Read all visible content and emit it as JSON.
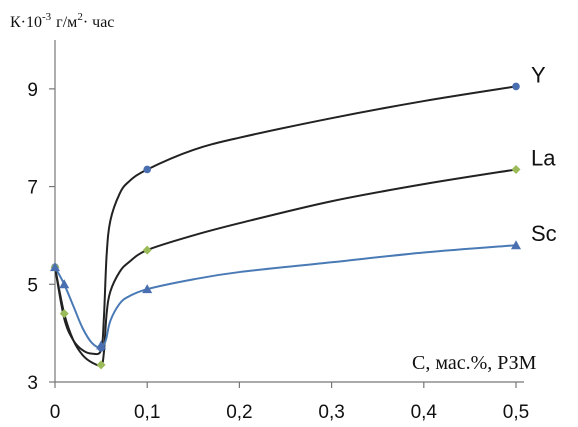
{
  "chart_data": {
    "type": "line",
    "ylabel_main": "К·10",
    "ylabel_exp": "-3",
    "ylabel_unit_a": "г/м",
    "ylabel_unit_exp": "2",
    "ylabel_unit_b": "· час",
    "xlabel": "С, мас.%, РЗМ",
    "x_ticks": [
      "0",
      "0,1",
      "0,2",
      "0,3",
      "0,4",
      "0,5"
    ],
    "x_tick_values": [
      0,
      0.1,
      0.2,
      0.3,
      0.4,
      0.5
    ],
    "y_ticks": [
      "3",
      "5",
      "7",
      "9"
    ],
    "y_tick_values": [
      3,
      5,
      7,
      9
    ],
    "xlim": [
      0,
      0.5
    ],
    "ylim": [
      3,
      10
    ],
    "grid": false,
    "series": [
      {
        "name": "Y",
        "color": "#222222",
        "marker_color": "#4a6fb0",
        "marker": "circle",
        "points": [
          [
            0,
            5.35
          ],
          [
            0.05,
            3.7
          ],
          [
            0.1,
            7.35
          ],
          [
            0.5,
            9.05
          ]
        ],
        "curve": [
          [
            0,
            5.35
          ],
          [
            0.01,
            4.3
          ],
          [
            0.02,
            3.85
          ],
          [
            0.03,
            3.65
          ],
          [
            0.04,
            3.58
          ],
          [
            0.05,
            3.65
          ],
          [
            0.053,
            4.3
          ],
          [
            0.056,
            5.6
          ],
          [
            0.06,
            6.3
          ],
          [
            0.07,
            6.85
          ],
          [
            0.08,
            7.1
          ],
          [
            0.1,
            7.35
          ],
          [
            0.15,
            7.75
          ],
          [
            0.2,
            8.0
          ],
          [
            0.3,
            8.4
          ],
          [
            0.4,
            8.75
          ],
          [
            0.5,
            9.05
          ]
        ]
      },
      {
        "name": "La",
        "color": "#222222",
        "marker_color": "#9bbb59",
        "marker": "diamond",
        "points": [
          [
            0,
            5.35
          ],
          [
            0.01,
            4.4
          ],
          [
            0.05,
            3.35
          ],
          [
            0.1,
            5.7
          ],
          [
            0.5,
            7.35
          ]
        ],
        "curve": [
          [
            0,
            5.35
          ],
          [
            0.01,
            4.4
          ],
          [
            0.02,
            3.85
          ],
          [
            0.03,
            3.55
          ],
          [
            0.04,
            3.4
          ],
          [
            0.05,
            3.35
          ],
          [
            0.053,
            3.6
          ],
          [
            0.056,
            4.4
          ],
          [
            0.06,
            4.85
          ],
          [
            0.07,
            5.25
          ],
          [
            0.08,
            5.45
          ],
          [
            0.1,
            5.7
          ],
          [
            0.15,
            6.0
          ],
          [
            0.2,
            6.25
          ],
          [
            0.3,
            6.7
          ],
          [
            0.4,
            7.05
          ],
          [
            0.5,
            7.35
          ]
        ]
      },
      {
        "name": "Sc",
        "color": "#4a7ab5",
        "marker_color": "#4a6fb0",
        "marker": "triangle",
        "points": [
          [
            0,
            5.35
          ],
          [
            0.01,
            5.0
          ],
          [
            0.05,
            3.75
          ],
          [
            0.1,
            4.9
          ],
          [
            0.5,
            5.8
          ]
        ],
        "curve": [
          [
            0,
            5.35
          ],
          [
            0.01,
            5.0
          ],
          [
            0.02,
            4.55
          ],
          [
            0.03,
            4.1
          ],
          [
            0.04,
            3.8
          ],
          [
            0.05,
            3.7
          ],
          [
            0.055,
            3.85
          ],
          [
            0.06,
            4.25
          ],
          [
            0.07,
            4.6
          ],
          [
            0.08,
            4.75
          ],
          [
            0.1,
            4.9
          ],
          [
            0.15,
            5.1
          ],
          [
            0.2,
            5.25
          ],
          [
            0.3,
            5.45
          ],
          [
            0.4,
            5.65
          ],
          [
            0.5,
            5.8
          ]
        ]
      }
    ]
  }
}
